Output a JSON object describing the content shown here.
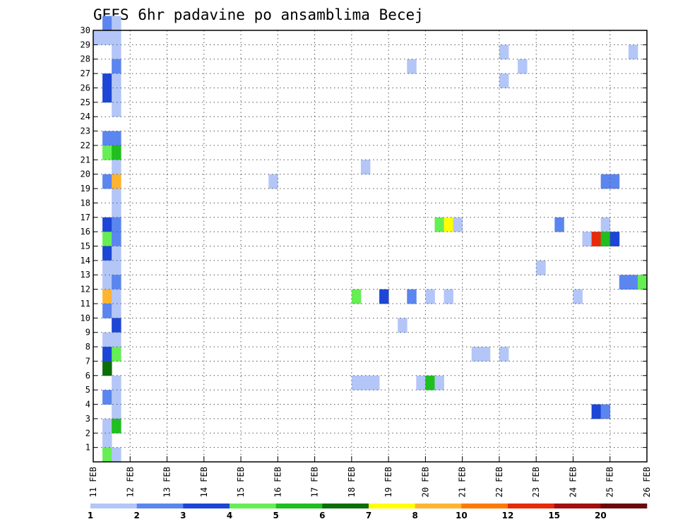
{
  "chart_data": {
    "type": "heatmap",
    "title": "GEFS 6hr padavine po ansamblima Becej",
    "xlabel": "",
    "ylabel": "",
    "x_ticks": [
      "11 FEB",
      "12 FEB",
      "13 FEB",
      "14 FEB",
      "15 FEB",
      "16 FEB",
      "17 FEB",
      "18 FEB",
      "19 FEB",
      "20 FEB",
      "21 FEB",
      "22 FEB",
      "23 FEB",
      "24 FEB",
      "25 FEB",
      "26 FEB"
    ],
    "y_ticks": [
      "1",
      "2",
      "3",
      "4",
      "5",
      "6",
      "7",
      "8",
      "9",
      "10",
      "11",
      "12",
      "13",
      "14",
      "15",
      "16",
      "17",
      "18",
      "19",
      "20",
      "21",
      "22",
      "23",
      "24",
      "25",
      "26",
      "27",
      "28",
      "29",
      "30"
    ],
    "xlim": [
      "11 FEB 00Z",
      "26 FEB 00Z"
    ],
    "ylim": [
      0,
      30
    ],
    "grid": true,
    "x_step_hours": 6,
    "legend": {
      "placement": "bottom",
      "colors": [
        "#b3c6f7",
        "#5b86ef",
        "#1d46d6",
        "#66ee55",
        "#1fbf1f",
        "#0a6e0a",
        "#ffff00",
        "#ffb430",
        "#ff7a00",
        "#e82a0a",
        "#a50f0f",
        "#6b0a0a"
      ],
      "labels": [
        "1",
        "2",
        "3",
        "4",
        "5",
        "6",
        "7",
        "8",
        "10",
        "12",
        "15",
        "20"
      ]
    },
    "cells": [
      {
        "day": 11,
        "h": 6,
        "m": 30,
        "c": 1
      },
      {
        "day": 11,
        "h": 12,
        "m": 30,
        "c": 0
      },
      {
        "day": 11,
        "h": 0,
        "m": 29,
        "c": 0
      },
      {
        "day": 11,
        "h": 6,
        "m": 29,
        "c": 0
      },
      {
        "day": 11,
        "h": 12,
        "m": 29,
        "c": 0
      },
      {
        "day": 11,
        "h": 12,
        "m": 28,
        "c": 0
      },
      {
        "day": 11,
        "h": 12,
        "m": 27,
        "c": 1
      },
      {
        "day": 11,
        "h": 6,
        "m": 26,
        "c": 2
      },
      {
        "day": 11,
        "h": 12,
        "m": 26,
        "c": 0
      },
      {
        "day": 11,
        "h": 6,
        "m": 25,
        "c": 2
      },
      {
        "day": 11,
        "h": 12,
        "m": 25,
        "c": 0
      },
      {
        "day": 11,
        "h": 12,
        "m": 24,
        "c": 0
      },
      {
        "day": 11,
        "h": 6,
        "m": 22,
        "c": 1
      },
      {
        "day": 11,
        "h": 12,
        "m": 22,
        "c": 1
      },
      {
        "day": 11,
        "h": 6,
        "m": 21,
        "c": 3
      },
      {
        "day": 11,
        "h": 12,
        "m": 21,
        "c": 4
      },
      {
        "day": 11,
        "h": 12,
        "m": 20,
        "c": 0
      },
      {
        "day": 11,
        "h": 6,
        "m": 19,
        "c": 1
      },
      {
        "day": 11,
        "h": 12,
        "m": 19,
        "c": 7
      },
      {
        "day": 11,
        "h": 12,
        "m": 18,
        "c": 0
      },
      {
        "day": 11,
        "h": 12,
        "m": 17,
        "c": 0
      },
      {
        "day": 11,
        "h": 6,
        "m": 16,
        "c": 2
      },
      {
        "day": 11,
        "h": 12,
        "m": 16,
        "c": 1
      },
      {
        "day": 11,
        "h": 6,
        "m": 15,
        "c": 3
      },
      {
        "day": 11,
        "h": 12,
        "m": 15,
        "c": 1
      },
      {
        "day": 11,
        "h": 6,
        "m": 14,
        "c": 2
      },
      {
        "day": 11,
        "h": 12,
        "m": 14,
        "c": 0
      },
      {
        "day": 11,
        "h": 6,
        "m": 13,
        "c": 0
      },
      {
        "day": 11,
        "h": 12,
        "m": 13,
        "c": 0
      },
      {
        "day": 11,
        "h": 6,
        "m": 12,
        "c": 0
      },
      {
        "day": 11,
        "h": 12,
        "m": 12,
        "c": 1
      },
      {
        "day": 11,
        "h": 6,
        "m": 11,
        "c": 7
      },
      {
        "day": 11,
        "h": 12,
        "m": 11,
        "c": 0
      },
      {
        "day": 11,
        "h": 6,
        "m": 10,
        "c": 1
      },
      {
        "day": 11,
        "h": 12,
        "m": 10,
        "c": 0
      },
      {
        "day": 11,
        "h": 12,
        "m": 9,
        "c": 2
      },
      {
        "day": 11,
        "h": 6,
        "m": 8,
        "c": 0
      },
      {
        "day": 11,
        "h": 12,
        "m": 8,
        "c": 0
      },
      {
        "day": 11,
        "h": 6,
        "m": 7,
        "c": 2
      },
      {
        "day": 11,
        "h": 12,
        "m": 7,
        "c": 3
      },
      {
        "day": 11,
        "h": 6,
        "m": 6,
        "c": 5
      },
      {
        "day": 11,
        "h": 12,
        "m": 5,
        "c": 0
      },
      {
        "day": 11,
        "h": 6,
        "m": 4,
        "c": 1
      },
      {
        "day": 11,
        "h": 12,
        "m": 4,
        "c": 0
      },
      {
        "day": 11,
        "h": 12,
        "m": 3,
        "c": 0
      },
      {
        "day": 11,
        "h": 6,
        "m": 2,
        "c": 0
      },
      {
        "day": 11,
        "h": 12,
        "m": 2,
        "c": 4
      },
      {
        "day": 11,
        "h": 6,
        "m": 1,
        "c": 0
      },
      {
        "day": 11,
        "h": 6,
        "m": 0,
        "c": 3
      },
      {
        "day": 11,
        "h": 12,
        "m": 0,
        "c": 0
      },
      {
        "day": 15,
        "h": 18,
        "m": 19,
        "c": 0
      },
      {
        "day": 18,
        "h": 6,
        "m": 20,
        "c": 0
      },
      {
        "day": 18,
        "h": 0,
        "m": 11,
        "c": 3
      },
      {
        "day": 18,
        "h": 18,
        "m": 11,
        "c": 2
      },
      {
        "day": 18,
        "h": 0,
        "m": 5,
        "c": 0
      },
      {
        "day": 18,
        "h": 6,
        "m": 5,
        "c": 0
      },
      {
        "day": 18,
        "h": 12,
        "m": 5,
        "c": 0
      },
      {
        "day": 19,
        "h": 6,
        "m": 9,
        "c": 0
      },
      {
        "day": 19,
        "h": 12,
        "m": 27,
        "c": 0
      },
      {
        "day": 19,
        "h": 12,
        "m": 11,
        "c": 1
      },
      {
        "day": 19,
        "h": 18,
        "m": 5,
        "c": 0
      },
      {
        "day": 20,
        "h": 0,
        "m": 11,
        "c": 0
      },
      {
        "day": 20,
        "h": 0,
        "m": 5,
        "c": 4
      },
      {
        "day": 20,
        "h": 6,
        "m": 5,
        "c": 0
      },
      {
        "day": 20,
        "h": 6,
        "m": 16,
        "c": 3
      },
      {
        "day": 20,
        "h": 12,
        "m": 16,
        "c": 6
      },
      {
        "day": 20,
        "h": 18,
        "m": 16,
        "c": 0
      },
      {
        "day": 20,
        "h": 12,
        "m": 11,
        "c": 0
      },
      {
        "day": 21,
        "h": 6,
        "m": 7,
        "c": 0
      },
      {
        "day": 21,
        "h": 12,
        "m": 7,
        "c": 0
      },
      {
        "day": 22,
        "h": 0,
        "m": 28,
        "c": 0
      },
      {
        "day": 22,
        "h": 0,
        "m": 26,
        "c": 0
      },
      {
        "day": 22,
        "h": 0,
        "m": 7,
        "c": 0
      },
      {
        "day": 22,
        "h": 12,
        "m": 27,
        "c": 0
      },
      {
        "day": 23,
        "h": 0,
        "m": 13,
        "c": 0
      },
      {
        "day": 23,
        "h": 12,
        "m": 16,
        "c": 1
      },
      {
        "day": 24,
        "h": 0,
        "m": 11,
        "c": 0
      },
      {
        "day": 24,
        "h": 6,
        "m": 15,
        "c": 0
      },
      {
        "day": 24,
        "h": 12,
        "m": 15,
        "c": 9
      },
      {
        "day": 24,
        "h": 12,
        "m": 3,
        "c": 2
      },
      {
        "day": 24,
        "h": 18,
        "m": 19,
        "c": 1
      },
      {
        "day": 25,
        "h": 0,
        "m": 19,
        "c": 1
      },
      {
        "day": 24,
        "h": 18,
        "m": 16,
        "c": 0
      },
      {
        "day": 24,
        "h": 18,
        "m": 15,
        "c": 4
      },
      {
        "day": 24,
        "h": 18,
        "m": 3,
        "c": 1
      },
      {
        "day": 25,
        "h": 0,
        "m": 15,
        "c": 2
      },
      {
        "day": 25,
        "h": 6,
        "m": 12,
        "c": 1
      },
      {
        "day": 25,
        "h": 12,
        "m": 12,
        "c": 1
      },
      {
        "day": 25,
        "h": 18,
        "m": 12,
        "c": 3
      },
      {
        "day": 25,
        "h": 12,
        "m": 28,
        "c": 0
      }
    ]
  }
}
